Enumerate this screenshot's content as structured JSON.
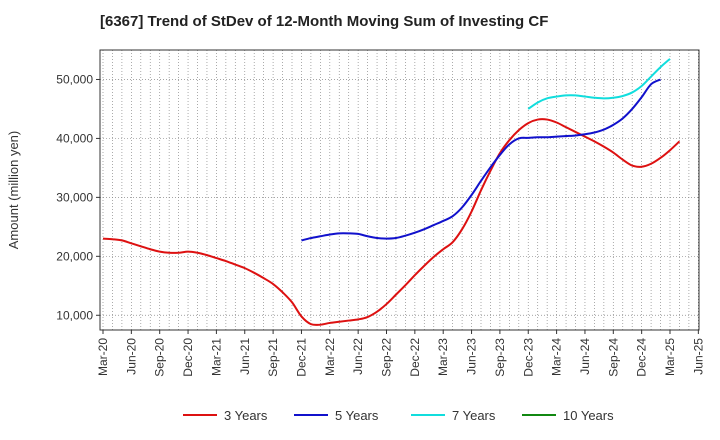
{
  "chart_data": {
    "type": "line",
    "title": "[6367]  Trend of StDev of 12-Month Moving Sum of Investing CF",
    "xlabel": "",
    "ylabel": "Amount (million yen)",
    "ylim": [
      7500,
      55000
    ],
    "yticks": [
      10000,
      20000,
      30000,
      40000,
      50000
    ],
    "ytick_labels": [
      "10,000",
      "20,000",
      "30,000",
      "40,000",
      "50,000"
    ],
    "xtick_labels": [
      "Mar-20",
      "Jun-20",
      "Sep-20",
      "Dec-20",
      "Mar-21",
      "Jun-21",
      "Sep-21",
      "Dec-21",
      "Mar-22",
      "Jun-22",
      "Sep-22",
      "Dec-22",
      "Mar-23",
      "Jun-23",
      "Sep-23",
      "Dec-23",
      "Mar-24",
      "Jun-24",
      "Sep-24",
      "Dec-24",
      "Mar-25",
      "Jun-25"
    ],
    "grid": true,
    "legend_position": "bottom",
    "series": [
      {
        "name": "3 Years",
        "color": "#dd1111",
        "start_index": 0,
        "values": [
          23000,
          22900,
          22700,
          22200,
          21700,
          21200,
          20800,
          20600,
          20600,
          20800,
          20600,
          20200,
          19700,
          19200,
          18600,
          18000,
          17200,
          16300,
          15300,
          13900,
          12200,
          9800,
          8500,
          8400,
          8700,
          8900,
          9100,
          9300,
          9700,
          10600,
          11900,
          13500,
          15100,
          16800,
          18400,
          19900,
          21200,
          22400,
          24600,
          27600,
          31200,
          34500,
          37500,
          39700,
          41400,
          42600,
          43200,
          43200,
          42700,
          41900,
          41100,
          40300,
          39500,
          38600,
          37600,
          36400,
          35400,
          35200,
          35700,
          36700,
          38000,
          39500
        ]
      },
      {
        "name": "5 Years",
        "color": "#1111cc",
        "start_index": 21,
        "values": [
          22700,
          23100,
          23400,
          23700,
          23900,
          23900,
          23800,
          23400,
          23100,
          23000,
          23100,
          23500,
          24000,
          24600,
          25300,
          26000,
          26800,
          28300,
          30400,
          32800,
          35100,
          37200,
          39000,
          40000,
          40100,
          40200,
          40200,
          40300,
          40400,
          40500,
          40700,
          41000,
          41500,
          42300,
          43400,
          45000,
          47000,
          49200,
          50000
        ]
      },
      {
        "name": "7 Years",
        "color": "#11dddd",
        "start_index": 45,
        "values": [
          45000,
          46100,
          46800,
          47100,
          47300,
          47300,
          47100,
          46900,
          46800,
          46900,
          47200,
          47800,
          48900,
          50500,
          52100,
          53500
        ]
      },
      {
        "name": "10 Years",
        "color": "#118811",
        "start_index": 0,
        "values": []
      }
    ],
    "total_points": 66
  }
}
